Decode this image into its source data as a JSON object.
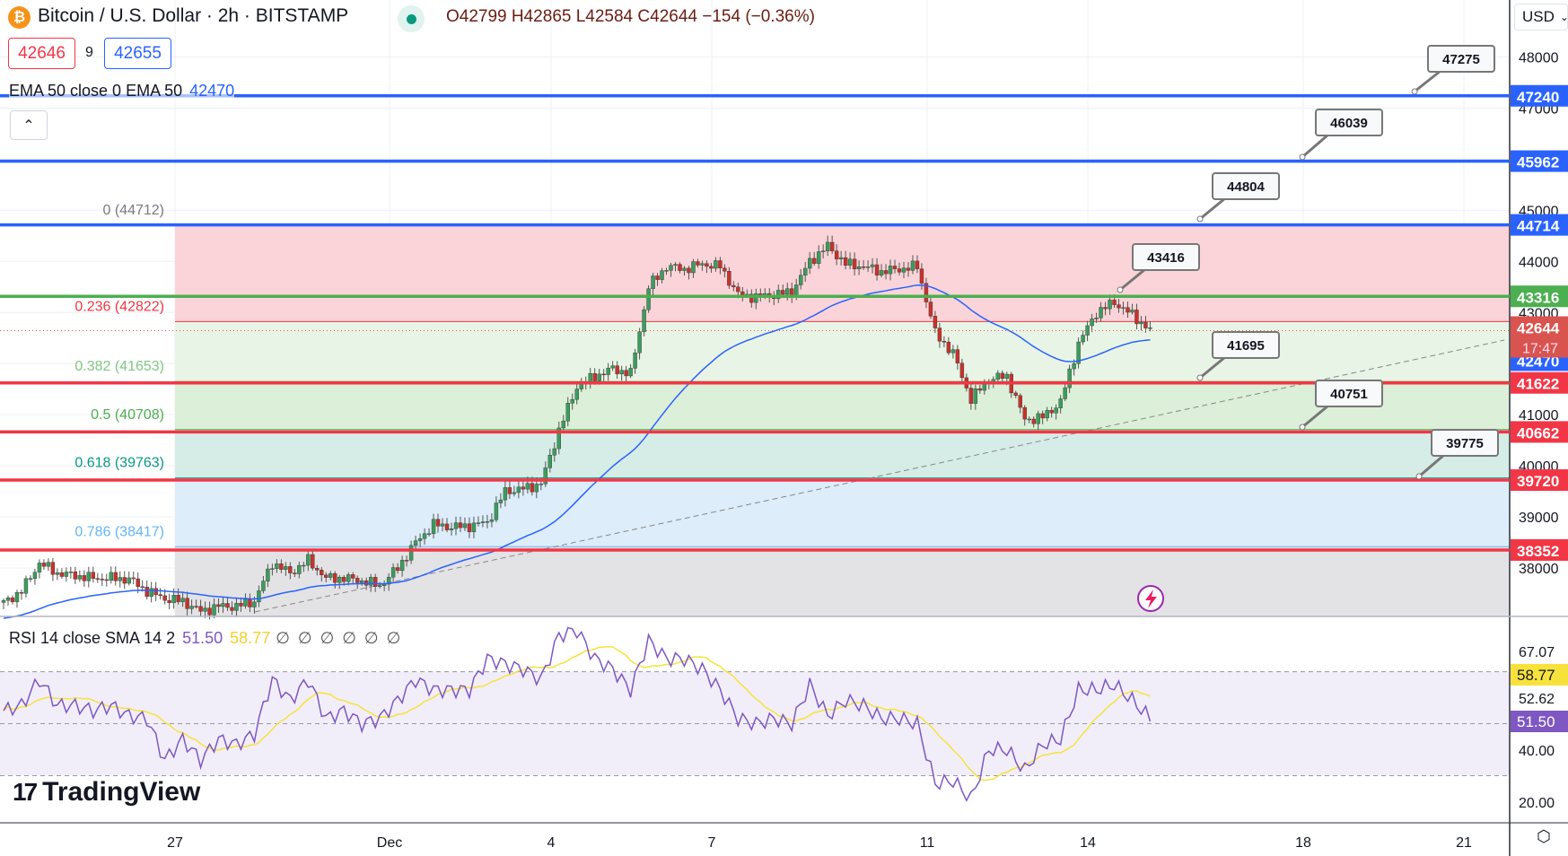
{
  "header": {
    "symbol_title": "Bitcoin / U.S. Dollar · 2h · BITSTAMP",
    "coin_icon": "bitcoin-icon",
    "market_status_color": "#089981",
    "ohlc": "O42799 H42865 L42584 C42644 −154 (−0.36%)",
    "sell_price": "42646",
    "spread": "9",
    "buy_price": "42655"
  },
  "ema_legend": {
    "label": "EMA 50 close 0 EMA 50",
    "value": "42470"
  },
  "rsi_legend": {
    "label": "RSI 14 close SMA 14 2",
    "rsi_value": "51.50",
    "sma_value": "58.77",
    "extras": "∅ ∅ ∅ ∅ ∅ ∅"
  },
  "currency": "USD",
  "price_axis_ticks": [
    "48000",
    "47000",
    "45000",
    "44000",
    "43000",
    "41000",
    "40000",
    "39000",
    "38000"
  ],
  "horizontal_lines": [
    {
      "price": 47240,
      "label": "47240",
      "color": "#2962ff"
    },
    {
      "price": 45962,
      "label": "45962",
      "color": "#2962ff"
    },
    {
      "price": 44714,
      "label": "44714",
      "color": "#2962ff"
    },
    {
      "price": 43316,
      "label": "43316",
      "color": "#4caf50"
    },
    {
      "price": 41622,
      "label": "41622",
      "color": "#f23645"
    },
    {
      "price": 40662,
      "label": "40662",
      "color": "#f23645"
    },
    {
      "price": 39720,
      "label": "39720",
      "color": "#f23645"
    },
    {
      "price": 38352,
      "label": "38352",
      "color": "#f23645"
    }
  ],
  "current_price": {
    "price": 42644,
    "label": "42644",
    "countdown": "17:47",
    "color": "#d9534f"
  },
  "ema_tag": {
    "price": 42470,
    "label": "42470",
    "color": "#2962ff"
  },
  "callouts": [
    {
      "label": "47275"
    },
    {
      "label": "46039"
    },
    {
      "label": "44804"
    },
    {
      "label": "43416"
    },
    {
      "label": "41695"
    },
    {
      "label": "40751"
    },
    {
      "label": "39775"
    }
  ],
  "fib_levels": [
    {
      "label": "0 (44712)",
      "price": 44712,
      "color": "#787b86",
      "fill": "#fad4d8"
    },
    {
      "label": "0.236 (42822)",
      "price": 42822,
      "color": "#f23645",
      "fill": "#e8f4e5"
    },
    {
      "label": "0.382 (41653)",
      "price": 41653,
      "color": "#81c784",
      "fill": "#dcefd8"
    },
    {
      "label": "0.5 (40708)",
      "price": 40708,
      "color": "#4caf50",
      "fill": "#d6ece6"
    },
    {
      "label": "0.618 (39763)",
      "price": 39763,
      "color": "#089981",
      "fill": "#ddedf9"
    },
    {
      "label": "0.786 (38417)",
      "price": 38417,
      "color": "#64b5f6",
      "fill": "#e3e3e5"
    }
  ],
  "x_axis_labels": [
    "27",
    "Dec",
    "4",
    "7",
    "11",
    "14",
    "18",
    "21"
  ],
  "rsi_axis": {
    "ticks": [
      "67.07",
      "52.62",
      "40.00",
      "20.00"
    ],
    "sma_tag": "58.77",
    "rsi_tag": "51.50",
    "sma_color": "#f7e23c",
    "rsi_color": "#7e57c2"
  },
  "branding": "TradingView",
  "colors": {
    "up": "#3b9d5d",
    "down": "#c8322a",
    "ema": "#2962ff",
    "rsi": "#7e57c2",
    "rsi_sma": "#f7e23c"
  },
  "chart_data": {
    "type": "candlestick",
    "interval": "2h",
    "ylim": [
      37000,
      48500
    ],
    "close_samples_every_8h": [
      37315,
      37550,
      38100,
      37900,
      37850,
      37800,
      37800,
      37780,
      37550,
      37400,
      37350,
      37150,
      37250,
      37250,
      37350,
      38100,
      37900,
      38150,
      37800,
      37800,
      37750,
      37650,
      38000,
      38500,
      38850,
      38800,
      38820,
      38900,
      39500,
      39550,
      39650,
      40700,
      41550,
      41750,
      41900,
      41800,
      43500,
      43900,
      43850,
      43950,
      43900,
      43350,
      43300,
      43350,
      43400,
      44000,
      44300,
      43950,
      43900,
      43800,
      43850,
      43900,
      42600,
      42200,
      41300,
      41700,
      41750,
      40900,
      40950,
      41250,
      42400,
      43000,
      43200,
      42950,
      42650
    ],
    "rsi_samples_every_8h": [
      55,
      57,
      67,
      57,
      57,
      55,
      57,
      53,
      52,
      36,
      44,
      36,
      44,
      42,
      46,
      67,
      59,
      67,
      52,
      55,
      50,
      52,
      59,
      67,
      63,
      63,
      63,
      75,
      73,
      71,
      67,
      84,
      86,
      75,
      71,
      63,
      82,
      75,
      75,
      71,
      63,
      52,
      50,
      52,
      50,
      65,
      53,
      59,
      57,
      52,
      52,
      50,
      27,
      28,
      21,
      40,
      40,
      32,
      42,
      44,
      63,
      63,
      65,
      59,
      52
    ],
    "rsi_bands": [
      70,
      50,
      30
    ]
  }
}
